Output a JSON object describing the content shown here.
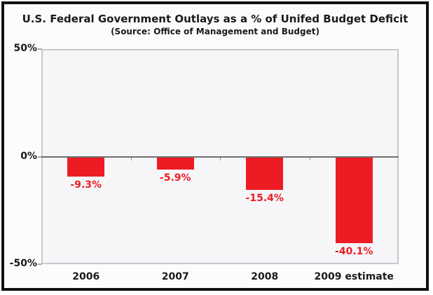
{
  "chart_data": {
    "type": "bar",
    "title": "U.S. Federal Government Outlays as a % of Unifed Budget Deficit",
    "subtitle": "(Source: Office of Management and Budget)",
    "categories": [
      "2006",
      "2007",
      "2008",
      "2009 estimate"
    ],
    "values": [
      -9.3,
      -5.9,
      -15.4,
      -40.1
    ],
    "value_labels": [
      "-9.3%",
      "-5.9%",
      "-15.4%",
      "-40.1%"
    ],
    "ylim": [
      -50,
      50
    ],
    "yticks": [
      {
        "value": 50,
        "label": "50%"
      },
      {
        "value": 0,
        "label": "0%"
      },
      {
        "value": -50,
        "label": "-50%"
      }
    ],
    "xlabel": "",
    "ylabel": "",
    "grid": false,
    "legend": "none",
    "bar_color": "#ED1C24",
    "value_label_color": "#ED1C24",
    "axis_color": "#c8c8cc",
    "zero_line_color": "#6e6e6e",
    "text_color": "#1a1a1a"
  }
}
